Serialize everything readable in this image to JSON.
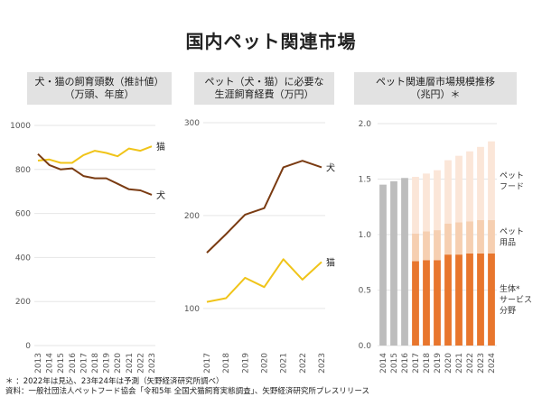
{
  "title": "国内ペット関連市場",
  "chart_data": [
    {
      "type": "line",
      "title_lines": [
        "犬・猫の飼育頭数（推計値）",
        "（万頭、年度）"
      ],
      "x": [
        "2013",
        "2014",
        "2015",
        "2016",
        "2017",
        "2018",
        "2019",
        "2020",
        "2021",
        "2022",
        "2023"
      ],
      "ylim": [
        0,
        1000
      ],
      "yticks": [
        "0",
        "200",
        "400",
        "600",
        "800",
        "1000"
      ],
      "ytick_values": [
        0,
        200,
        400,
        600,
        800,
        1000
      ],
      "series": [
        {
          "name": "猫",
          "color": "#f0c419",
          "values": [
            840,
            845,
            830,
            830,
            865,
            885,
            875,
            860,
            895,
            885,
            905
          ]
        },
        {
          "name": "犬",
          "color": "#7a3b12",
          "values": [
            870,
            820,
            800,
            805,
            770,
            760,
            760,
            735,
            710,
            705,
            685
          ]
        }
      ]
    },
    {
      "type": "line",
      "title_lines": [
        "ペット（犬・猫）に必要な",
        "生涯飼育経費（万円）"
      ],
      "x": [
        "2017",
        "2018",
        "2019",
        "2020",
        "2021",
        "2022",
        "2023"
      ],
      "ylim": [
        60,
        300
      ],
      "yticks": [
        "100",
        "200",
        "300"
      ],
      "ytick_values": [
        100,
        200,
        300
      ],
      "series": [
        {
          "name": "犬",
          "color": "#7a3b12",
          "values": [
            160,
            180,
            201,
            208,
            252,
            259,
            252
          ]
        },
        {
          "name": "猫",
          "color": "#f0c419",
          "values": [
            107,
            111,
            133,
            123,
            153,
            131,
            150
          ]
        }
      ]
    },
    {
      "type": "bar",
      "stacked": true,
      "title_lines": [
        "ペット関連層市場規模推移",
        "（兆円）＊"
      ],
      "categories": [
        "2014",
        "2015",
        "2016",
        "2017",
        "2018",
        "2019",
        "2020",
        "2021",
        "2022",
        "2023",
        "2024"
      ],
      "ylim": [
        0,
        2.0
      ],
      "yticks": [
        "0.0",
        "0.5",
        "1.0",
        "1.5",
        "2.0"
      ],
      "ytick_values": [
        0,
        0.5,
        1.0,
        1.5,
        2.0
      ],
      "totals_only_color": "#bdbdbd",
      "totals_only": [
        1.45,
        1.48,
        1.51,
        null,
        null,
        null,
        null,
        null,
        null,
        null,
        null
      ],
      "series": [
        {
          "name": "生体・サービス分野",
          "color": "#e8762d",
          "values": [
            null,
            null,
            null,
            0.76,
            0.77,
            0.77,
            0.82,
            0.82,
            0.83,
            0.83,
            0.83
          ]
        },
        {
          "name": "ペット用品",
          "color": "#f6cfb1",
          "values": [
            null,
            null,
            null,
            0.25,
            0.26,
            0.27,
            0.28,
            0.29,
            0.29,
            0.3,
            0.3
          ]
        },
        {
          "name": "ペットフード",
          "color": "#fbe6d8",
          "values": [
            null,
            null,
            null,
            0.51,
            0.52,
            0.54,
            0.57,
            0.6,
            0.63,
            0.66,
            0.71
          ]
        }
      ],
      "segment_labels": [
        {
          "series": "ペットフード",
          "lines": [
            "ペット",
            "フード"
          ]
        },
        {
          "series": "ペット用品",
          "lines": [
            "ペット",
            "用品"
          ]
        },
        {
          "series": "生体・サービス分野",
          "lines": [
            "生体*",
            "サービス",
            "分野"
          ]
        }
      ]
    }
  ],
  "footnotes": [
    "＊  ：2022年は見込、23年24年は予測（矢野経済研究所調べ）",
    "資料：一般社団法人ペットフード協会「令和5年 全国犬猫飼育実態調査」、矢野経済研究所プレスリリース"
  ]
}
